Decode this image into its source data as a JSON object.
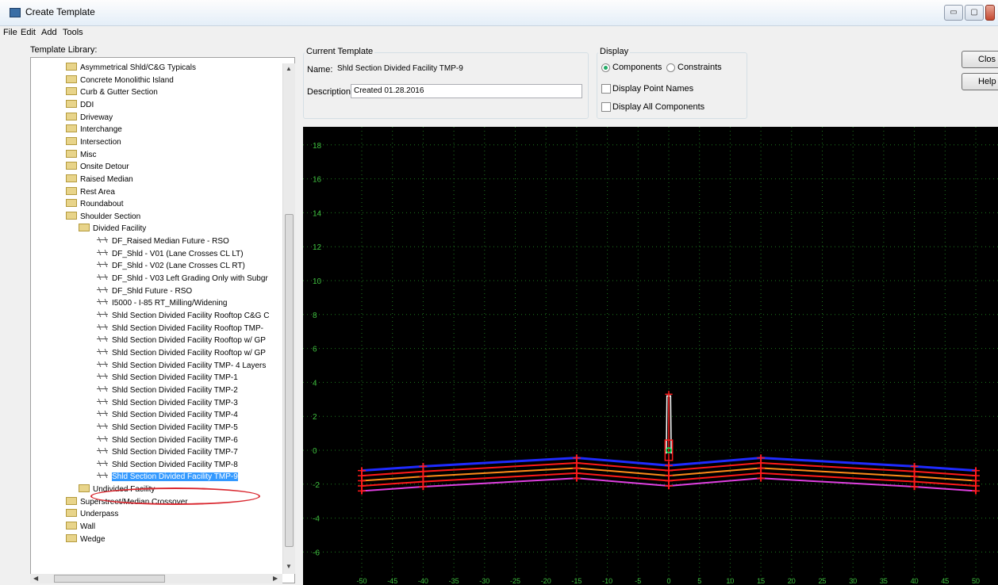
{
  "window": {
    "title": "Create Template",
    "minimize_glyph": "▭",
    "maximize_glyph": "▢"
  },
  "menu": [
    "File",
    "Edit",
    "Add",
    "Tools"
  ],
  "library": {
    "label": "Template Library:",
    "items": [
      {
        "kind": "folder",
        "level": 3,
        "label": "Asymmetrical Shld/C&G Typicals"
      },
      {
        "kind": "folder",
        "level": 3,
        "label": "Concrete Monolithic Island"
      },
      {
        "kind": "folder",
        "level": 3,
        "label": "Curb & Gutter Section"
      },
      {
        "kind": "folder",
        "level": 3,
        "label": "DDI"
      },
      {
        "kind": "folder",
        "level": 3,
        "label": "Driveway"
      },
      {
        "kind": "folder",
        "level": 3,
        "label": "Interchange"
      },
      {
        "kind": "folder",
        "level": 3,
        "label": "Intersection"
      },
      {
        "kind": "folder",
        "level": 3,
        "label": "Misc"
      },
      {
        "kind": "folder",
        "level": 3,
        "label": "Onsite Detour"
      },
      {
        "kind": "folder",
        "level": 3,
        "label": "Raised Median"
      },
      {
        "kind": "folder",
        "level": 3,
        "label": "Rest Area"
      },
      {
        "kind": "folder",
        "level": 3,
        "label": "Roundabout"
      },
      {
        "kind": "folder",
        "level": 3,
        "label": "Shoulder Section"
      },
      {
        "kind": "folder",
        "level": 4,
        "label": "Divided Facility"
      },
      {
        "kind": "template",
        "level": 5,
        "label": "DF_Raised Median Future - RSO"
      },
      {
        "kind": "template",
        "level": 5,
        "label": "DF_Shld - V01 (Lane Crosses CL LT)"
      },
      {
        "kind": "template",
        "level": 5,
        "label": "DF_Shld - V02 (Lane Crosses CL RT)"
      },
      {
        "kind": "template",
        "level": 5,
        "label": "DF_Shld - V03 Left Grading Only with Subgr"
      },
      {
        "kind": "template",
        "level": 5,
        "label": "DF_Shld Future - RSO"
      },
      {
        "kind": "template",
        "level": 5,
        "label": "I5000 - I-85 RT_Milling/Widening"
      },
      {
        "kind": "template",
        "level": 5,
        "label": "Shld Section Divided Facility Rooftop C&G C"
      },
      {
        "kind": "template",
        "level": 5,
        "label": "Shld Section Divided Facility Rooftop TMP-"
      },
      {
        "kind": "template",
        "level": 5,
        "label": "Shld Section Divided Facility Rooftop w/ GP"
      },
      {
        "kind": "template",
        "level": 5,
        "label": "Shld Section Divided Facility Rooftop w/ GP"
      },
      {
        "kind": "template",
        "level": 5,
        "label": "Shld Section Divided Facility TMP- 4 Layers"
      },
      {
        "kind": "template",
        "level": 5,
        "label": "Shld Section Divided Facility TMP-1"
      },
      {
        "kind": "template",
        "level": 5,
        "label": "Shld Section Divided Facility TMP-2"
      },
      {
        "kind": "template",
        "level": 5,
        "label": "Shld Section Divided Facility TMP-3"
      },
      {
        "kind": "template",
        "level": 5,
        "label": "Shld Section Divided Facility TMP-4"
      },
      {
        "kind": "template",
        "level": 5,
        "label": "Shld Section Divided Facility TMP-5"
      },
      {
        "kind": "template",
        "level": 5,
        "label": "Shld Section Divided Facility TMP-6"
      },
      {
        "kind": "template",
        "level": 5,
        "label": "Shld Section Divided Facility TMP-7"
      },
      {
        "kind": "template",
        "level": 5,
        "label": "Shld Section Divided Facility TMP-8"
      },
      {
        "kind": "template",
        "level": 5,
        "label": "Shld Section Divided Facility TMP-9",
        "selected": true
      },
      {
        "kind": "folder",
        "level": 4,
        "label": "Undivided Facility"
      },
      {
        "kind": "folder",
        "level": 3,
        "label": "Superstreet/Median Crossover"
      },
      {
        "kind": "folder",
        "level": 3,
        "label": "Underpass"
      },
      {
        "kind": "folder",
        "level": 3,
        "label": "Wall"
      },
      {
        "kind": "folder",
        "level": 3,
        "label": "Wedge"
      }
    ]
  },
  "current_template": {
    "group_label": "Current Template",
    "name_label": "Name:",
    "name_value": "Shld Section Divided Facility TMP-9",
    "description_label": "Description:",
    "description_value": "Created 01.28.2016"
  },
  "display": {
    "group_label": "Display",
    "radio_components": "Components",
    "radio_constraints": "Constraints",
    "selected": "Components",
    "check_point_names": "Display Point Names",
    "check_all_components": "Display All Components"
  },
  "buttons": {
    "close": "Clos",
    "help": "Help"
  },
  "canvas": {
    "background": "#000000",
    "grid_color": "#1e7a1e",
    "label_color": "#3fbf3f",
    "y_ticks": [
      18,
      16,
      14,
      12,
      10,
      8,
      6,
      4,
      2,
      0,
      -2,
      -4,
      -6
    ],
    "x_ticks": [
      -50,
      -45,
      -40,
      -35,
      -30,
      -25,
      -20,
      -15,
      -10,
      -5,
      0,
      5,
      10,
      15,
      20,
      25,
      30,
      35,
      40,
      45,
      50
    ],
    "colors": {
      "blue": "#1f2bff",
      "red": "#ff1a1a",
      "orange": "#ff8c1a",
      "magenta": "#e040e0",
      "white": "#ffffff"
    }
  }
}
